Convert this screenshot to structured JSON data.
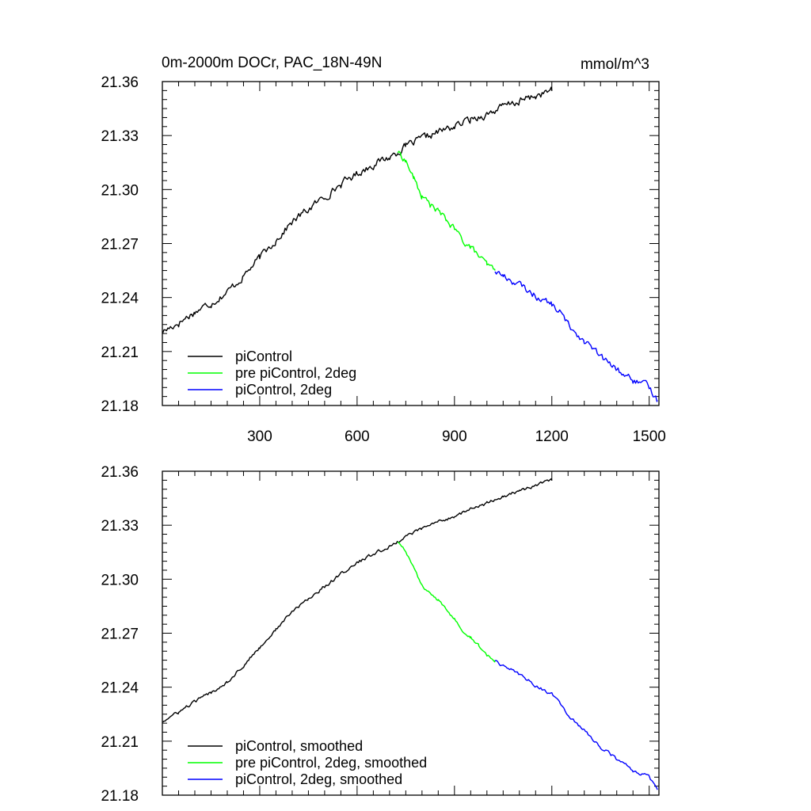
{
  "chart_data": [
    {
      "type": "line",
      "title": "0m-2000m DOCr, PAC_18N-49N",
      "units": "mmol/m^3",
      "xlabel": "",
      "ylabel": "",
      "xlim": [
        0,
        1530
      ],
      "ylim": [
        21.18,
        21.36
      ],
      "xticks": [
        300,
        600,
        900,
        1200,
        1500
      ],
      "yticks": [
        21.18,
        21.21,
        21.24,
        21.27,
        21.3,
        21.33,
        21.36
      ],
      "ytick_labels": [
        "21.18",
        "21.21",
        "21.24",
        "21.27",
        "21.30",
        "21.33",
        "21.36"
      ],
      "xtick_labels": [
        "300",
        "600",
        "900",
        "1200",
        "1500"
      ],
      "show_xtick_labels": true,
      "legend_position": "bottom-left",
      "grid": false,
      "series": [
        {
          "name": "piControl",
          "color": "#000000",
          "points": [
            [
              1,
              21.221
            ],
            [
              50,
              21.226
            ],
            [
              100,
              21.232
            ],
            [
              150,
              21.237
            ],
            [
              200,
              21.243
            ],
            [
              250,
              21.252
            ],
            [
              300,
              21.262
            ],
            [
              350,
              21.272
            ],
            [
              400,
              21.282
            ],
            [
              450,
              21.289
            ],
            [
              500,
              21.296
            ],
            [
              550,
              21.303
            ],
            [
              600,
              21.309
            ],
            [
              650,
              21.314
            ],
            [
              700,
              21.318
            ],
            [
              725,
              21.321
            ],
            [
              750,
              21.324
            ],
            [
              800,
              21.328
            ],
            [
              850,
              21.332
            ],
            [
              900,
              21.335
            ],
            [
              950,
              21.339
            ],
            [
              1000,
              21.342
            ],
            [
              1050,
              21.346
            ],
            [
              1100,
              21.349
            ],
            [
              1150,
              21.352
            ],
            [
              1200,
              21.355
            ]
          ],
          "noise": 0.0018
        },
        {
          "name": "pre piControl, 2deg",
          "color": "#00ff00",
          "points": [
            [
              725,
              21.321
            ],
            [
              750,
              21.316
            ],
            [
              775,
              21.306
            ],
            [
              800,
              21.296
            ],
            [
              825,
              21.292
            ],
            [
              850,
              21.288
            ],
            [
              875,
              21.283
            ],
            [
              900,
              21.278
            ],
            [
              925,
              21.272
            ],
            [
              950,
              21.268
            ],
            [
              975,
              21.263
            ],
            [
              1000,
              21.258
            ],
            [
              1025,
              21.255
            ]
          ],
          "noise": 0.0015
        },
        {
          "name": "piControl, 2deg",
          "color": "#0000ff",
          "points": [
            [
              1025,
              21.255
            ],
            [
              1050,
              21.252
            ],
            [
              1100,
              21.247
            ],
            [
              1150,
              21.241
            ],
            [
              1200,
              21.236
            ],
            [
              1225,
              21.232
            ],
            [
              1250,
              21.225
            ],
            [
              1300,
              21.216
            ],
            [
              1350,
              21.207
            ],
            [
              1400,
              21.2
            ],
            [
              1450,
              21.194
            ],
            [
              1500,
              21.19
            ],
            [
              1525,
              21.183
            ]
          ],
          "noise": 0.0016
        }
      ]
    },
    {
      "type": "line",
      "title": "",
      "xlim": [
        0,
        1530
      ],
      "ylim": [
        21.18,
        21.36
      ],
      "xticks": [
        300,
        600,
        900,
        1200,
        1500
      ],
      "yticks": [
        21.18,
        21.21,
        21.24,
        21.27,
        21.3,
        21.33,
        21.36
      ],
      "ytick_labels": [
        "21.18",
        "21.21",
        "21.24",
        "21.27",
        "21.30",
        "21.33",
        "21.36"
      ],
      "show_xtick_labels": false,
      "legend_position": "bottom-left",
      "grid": false,
      "series": [
        {
          "name": "piControl, smoothed",
          "color": "#000000",
          "points": [
            [
              1,
              21.221
            ],
            [
              50,
              21.226
            ],
            [
              100,
              21.232
            ],
            [
              150,
              21.237
            ],
            [
              200,
              21.243
            ],
            [
              250,
              21.252
            ],
            [
              300,
              21.262
            ],
            [
              350,
              21.272
            ],
            [
              400,
              21.282
            ],
            [
              450,
              21.289
            ],
            [
              500,
              21.296
            ],
            [
              550,
              21.303
            ],
            [
              600,
              21.309
            ],
            [
              650,
              21.314
            ],
            [
              700,
              21.318
            ],
            [
              725,
              21.321
            ],
            [
              750,
              21.324
            ],
            [
              800,
              21.328
            ],
            [
              850,
              21.332
            ],
            [
              900,
              21.335
            ],
            [
              950,
              21.339
            ],
            [
              1000,
              21.342
            ],
            [
              1050,
              21.346
            ],
            [
              1100,
              21.349
            ],
            [
              1150,
              21.352
            ],
            [
              1200,
              21.355
            ]
          ],
          "noise": 0.0008
        },
        {
          "name": "pre piControl, 2deg, smoothed",
          "color": "#00ff00",
          "points": [
            [
              725,
              21.321
            ],
            [
              750,
              21.316
            ],
            [
              775,
              21.306
            ],
            [
              800,
              21.296
            ],
            [
              825,
              21.292
            ],
            [
              850,
              21.288
            ],
            [
              875,
              21.283
            ],
            [
              900,
              21.278
            ],
            [
              925,
              21.272
            ],
            [
              950,
              21.268
            ],
            [
              975,
              21.263
            ],
            [
              1000,
              21.258
            ],
            [
              1025,
              21.255
            ]
          ],
          "noise": 0.0007
        },
        {
          "name": "piControl, 2deg, smoothed",
          "color": "#0000ff",
          "points": [
            [
              1025,
              21.255
            ],
            [
              1050,
              21.252
            ],
            [
              1100,
              21.247
            ],
            [
              1150,
              21.241
            ],
            [
              1200,
              21.236
            ],
            [
              1225,
              21.232
            ],
            [
              1250,
              21.225
            ],
            [
              1300,
              21.216
            ],
            [
              1350,
              21.207
            ],
            [
              1400,
              21.2
            ],
            [
              1450,
              21.194
            ],
            [
              1500,
              21.19
            ],
            [
              1525,
              21.183
            ]
          ],
          "noise": 0.0008
        }
      ]
    }
  ]
}
